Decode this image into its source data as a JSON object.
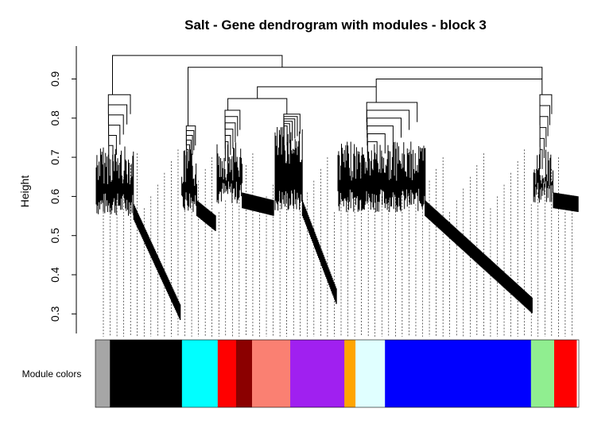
{
  "chart_data": {
    "type": "dendrogram",
    "title": "Salt - Gene dendrogram with modules - block 3",
    "ylabel": "Height",
    "ylim": [
      0.25,
      0.98
    ],
    "yticks": [
      "0.3",
      "0.4",
      "0.5",
      "0.6",
      "0.7",
      "0.8",
      "0.9"
    ],
    "yticks_values": [
      0.3,
      0.4,
      0.5,
      0.6,
      0.7,
      0.8,
      0.9
    ],
    "color_bar_label": "Module colors",
    "modules": [
      {
        "color": "#a6a6a6",
        "span": 0.03
      },
      {
        "color": "#000000",
        "span": 0.149
      },
      {
        "color": "#00ffff",
        "span": 0.074
      },
      {
        "color": "#ff0000",
        "span": 0.038
      },
      {
        "color": "#8b0000",
        "span": 0.033
      },
      {
        "color": "#fa8072",
        "span": 0.079
      },
      {
        "color": "#a020f0",
        "span": 0.112
      },
      {
        "color": "#ffa500",
        "span": 0.023
      },
      {
        "color": "#e0ffff",
        "span": 0.061
      },
      {
        "color": "#0000ff",
        "span": 0.302
      },
      {
        "color": "#90ee90",
        "span": 0.048
      },
      {
        "color": "#ff0000",
        "span": 0.046
      }
    ],
    "clusters": [
      {
        "start": 0.0,
        "end": 0.177,
        "top": 0.86,
        "base_low": 0.55,
        "base_high": 0.73,
        "tail_end": 0.29
      },
      {
        "start": 0.177,
        "end": 0.25,
        "top": 0.78,
        "base_low": 0.56,
        "base_high": 0.72,
        "tail_end": 0.52
      },
      {
        "start": 0.25,
        "end": 0.37,
        "top": 0.82,
        "base_low": 0.58,
        "base_high": 0.74,
        "tail_end": 0.56
      },
      {
        "start": 0.37,
        "end": 0.5,
        "top": 0.81,
        "base_low": 0.56,
        "base_high": 0.78,
        "tail_end": 0.33
      },
      {
        "start": 0.5,
        "end": 0.905,
        "top": 0.84,
        "base_low": 0.56,
        "base_high": 0.74,
        "tail_end": 0.31
      },
      {
        "start": 0.905,
        "end": 1.0,
        "top": 0.86,
        "base_low": 0.58,
        "base_high": 0.72,
        "tail_end": 0.57
      }
    ],
    "merges": [
      0.96,
      0.93,
      0.9,
      0.88,
      0.85
    ]
  }
}
